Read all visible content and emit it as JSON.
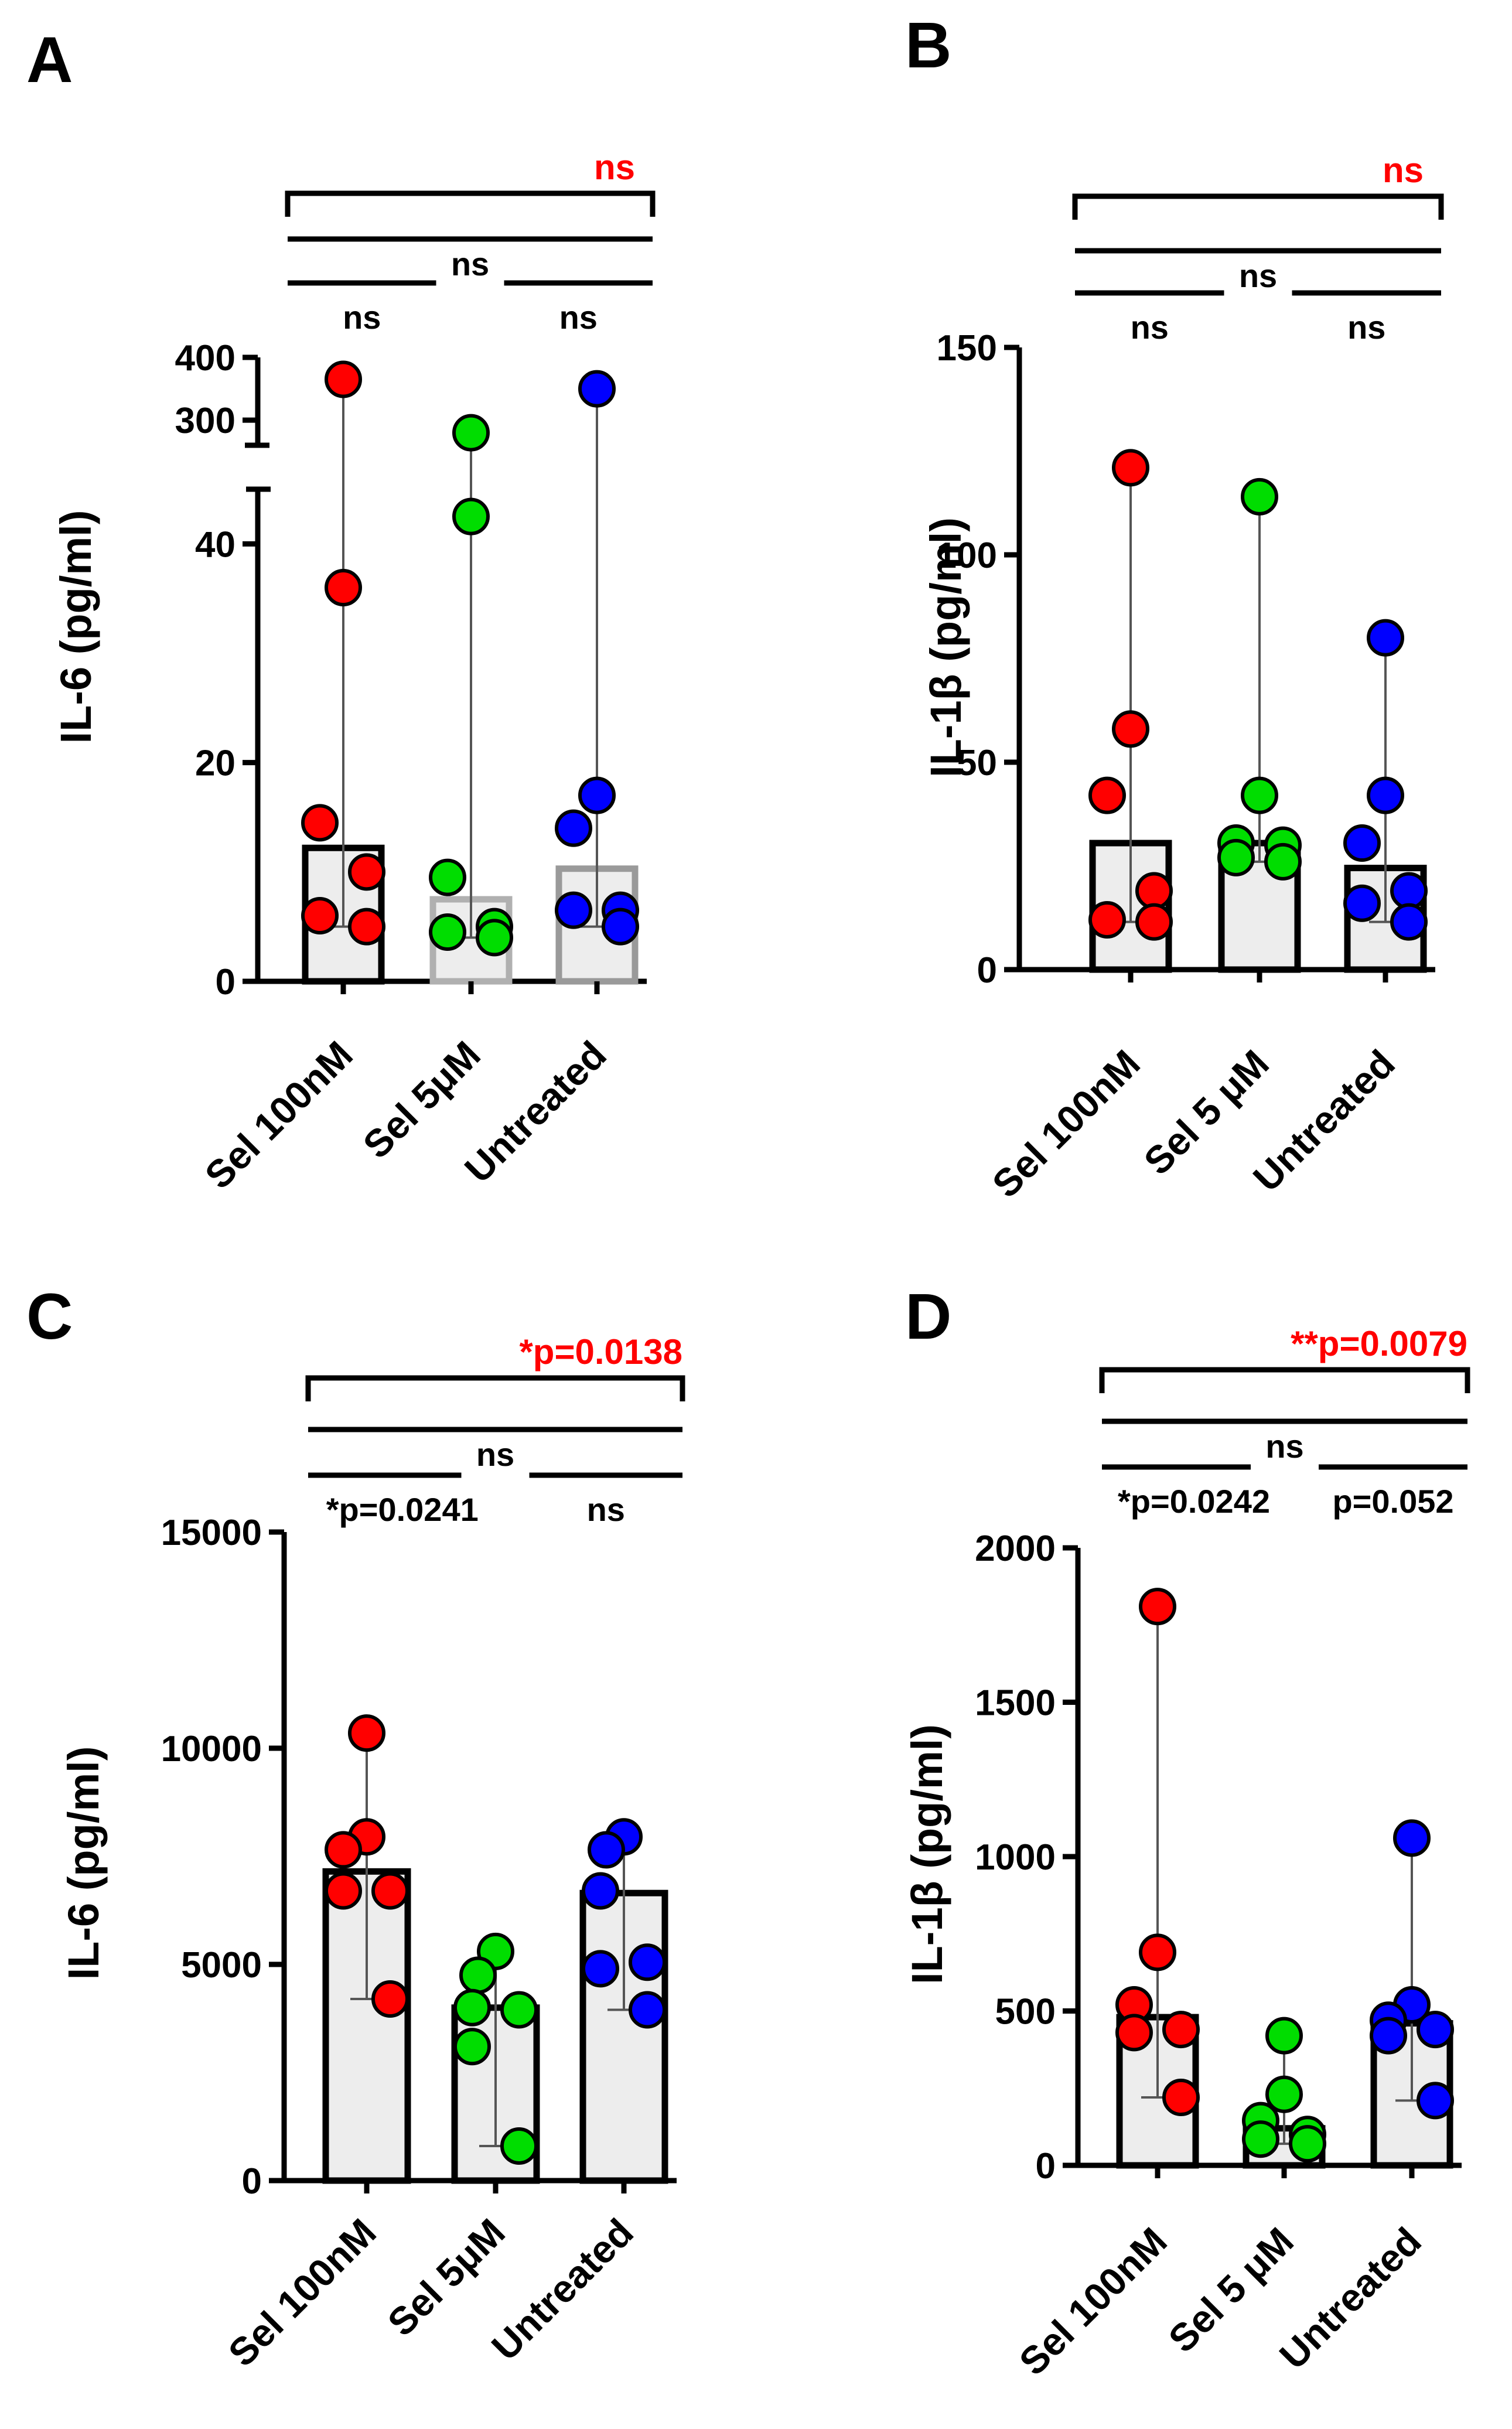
{
  "colors": {
    "treatment1": "#ff0000",
    "treatment2": "#00dd00",
    "untreated": "#0000ff",
    "highlight": "#ff0000",
    "bar_fill": "#ededed"
  },
  "chart_data": [
    {
      "type": "bar",
      "panel": "A",
      "ylabel": "IL-6 (pg/ml)",
      "categories": [
        "Sel 100nM",
        "Sel 5μM",
        "Untreated"
      ],
      "axis_break": {
        "lower": [
          0,
          45
        ],
        "upper": [
          260,
          400
        ]
      },
      "yticks": [
        0,
        20,
        40,
        300,
        400
      ],
      "bar_values": [
        12.2,
        7.5,
        10.3
      ],
      "bar_outline": [
        "#000000",
        "#b0b0b0",
        "#9a9a9a"
      ],
      "points": [
        [
          365,
          36,
          14.5,
          10,
          6,
          5
        ],
        [
          280,
          42.5,
          9.5,
          5,
          4.5,
          4
        ],
        [
          350,
          17,
          14,
          6.5,
          6.5,
          5
        ]
      ],
      "comparisons": [
        {
          "label": "ns",
          "span": "Sel 100nM-Untreated",
          "highlight": true
        },
        {
          "label": "ns",
          "span": "Sel 100nM-Untreated",
          "highlight": false
        },
        {
          "label": "ns",
          "span": "Sel 100nM-Sel 5μM",
          "highlight": false
        },
        {
          "label": "ns",
          "span": "Sel 5μM-Untreated",
          "highlight": false
        }
      ]
    },
    {
      "type": "bar",
      "panel": "B",
      "ylabel": "IL-1β (pg/ml)",
      "categories": [
        "Sel 100nM",
        "Sel 5 μM",
        "Untreated"
      ],
      "ylim": [
        0,
        150
      ],
      "yticks": [
        0,
        50,
        100,
        150
      ],
      "bar_values": [
        30.5,
        30.5,
        24.5
      ],
      "points": [
        [
          121,
          58,
          42,
          19,
          12,
          11.5
        ],
        [
          114,
          42,
          30.5,
          30,
          27,
          26
        ],
        [
          80,
          42,
          30.5,
          19,
          16,
          11.5
        ]
      ],
      "comparisons": [
        {
          "label": "ns",
          "span": "Sel 100nM-Untreated",
          "highlight": true
        },
        {
          "label": "ns",
          "span": "Sel 100nM-Untreated",
          "highlight": false
        },
        {
          "label": "ns",
          "span": "Sel 100nM-Sel 5 μM",
          "highlight": false
        },
        {
          "label": "ns",
          "span": "Sel 5 μM-Untreated",
          "highlight": false
        }
      ]
    },
    {
      "type": "bar",
      "panel": "C",
      "ylabel": "IL-6 (pg/ml)",
      "categories": [
        "Sel 100nM",
        "Sel 5μM",
        "Untreated"
      ],
      "ylim": [
        0,
        15000
      ],
      "yticks": [
        0,
        5000,
        10000,
        15000
      ],
      "bar_values": [
        7150,
        4000,
        6650
      ],
      "points": [
        [
          10350,
          7950,
          7650,
          6700,
          6700,
          4200
        ],
        [
          5300,
          4750,
          4000,
          3950,
          3100,
          800
        ],
        [
          7950,
          7650,
          6700,
          5050,
          4900,
          3950
        ]
      ],
      "comparisons": [
        {
          "label": "*p=0.0138",
          "span": "Sel 100nM-Untreated",
          "highlight": true
        },
        {
          "label": "ns",
          "span": "Sel 100nM-Untreated",
          "highlight": false
        },
        {
          "label": "*p=0.0241",
          "span": "Sel 100nM-Sel 5μM",
          "highlight": false
        },
        {
          "label": "ns",
          "span": "Sel 5μM-Untreated",
          "highlight": false
        }
      ]
    },
    {
      "type": "bar",
      "panel": "D",
      "ylabel": "IL-1β (pg/ml)",
      "categories": [
        "Sel 100nM",
        "Sel 5 μM",
        "Untreated"
      ],
      "ylim": [
        0,
        2000
      ],
      "yticks": [
        0,
        500,
        1000,
        1500,
        2000
      ],
      "bar_values": [
        480,
        120,
        460
      ],
      "points": [
        [
          1810,
          690,
          520,
          440,
          430,
          220
        ],
        [
          420,
          230,
          145,
          100,
          85,
          70
        ],
        [
          1060,
          520,
          470,
          440,
          420,
          210
        ]
      ],
      "comparisons": [
        {
          "label": "**p=0.0079",
          "span": "Sel 100nM-Untreated",
          "highlight": true
        },
        {
          "label": "ns",
          "span": "Sel 100nM-Untreated",
          "highlight": false
        },
        {
          "label": "*p=0.0242",
          "span": "Sel 100nM-Sel 5 μM",
          "highlight": false
        },
        {
          "label": "p=0.052",
          "span": "Sel 5 μM-Untreated",
          "highlight": false
        }
      ]
    }
  ]
}
